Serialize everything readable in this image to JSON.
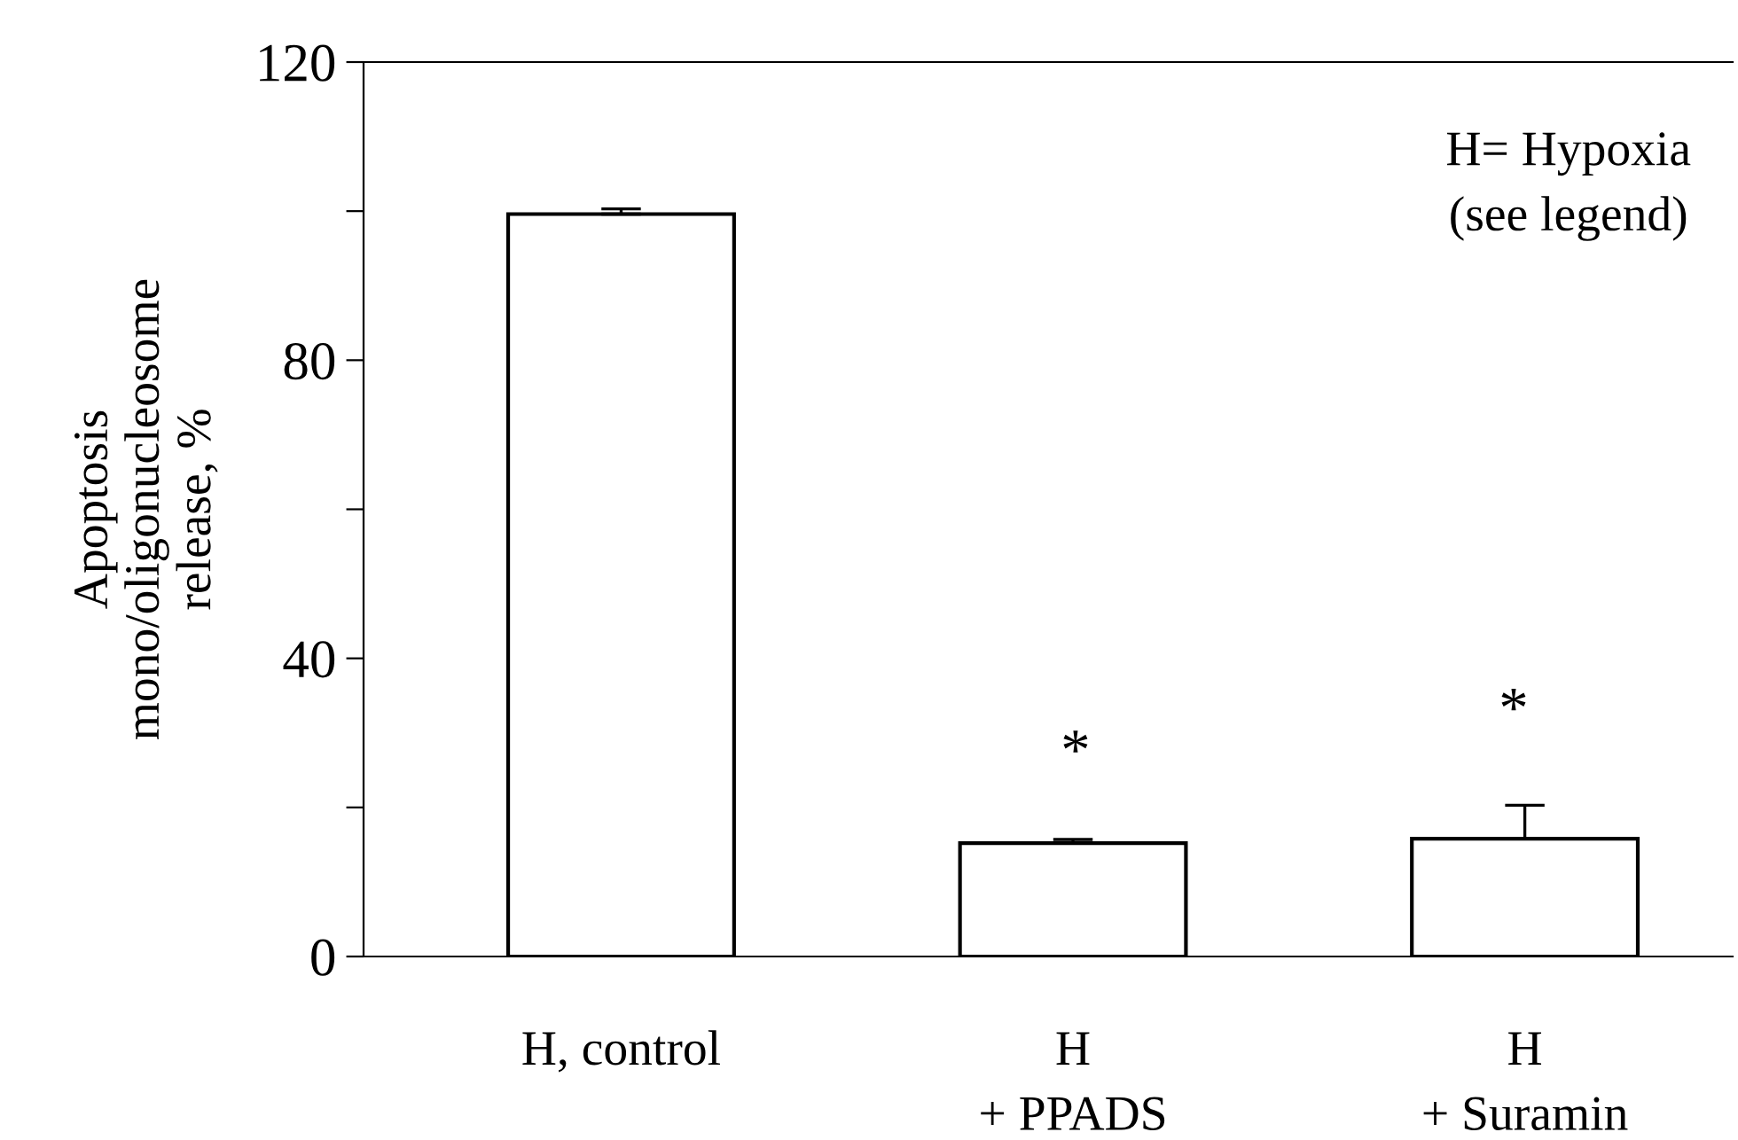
{
  "chart_data": {
    "type": "bar",
    "ylabel": "Apoptosis\nmono/oligonucleosome\nrelease, %",
    "categories": [
      "H, control",
      "H\n+ PPADS",
      "H\n+ Suramin"
    ],
    "values": [
      99.6,
      15.2,
      15.8
    ],
    "errors": [
      [
        99.6,
        100.3
      ],
      [
        15.2,
        15.7
      ],
      [
        15.8,
        20.3
      ]
    ],
    "color": "#ffffff",
    "ylim": [
      0,
      120
    ],
    "yticks": [
      0,
      {
        "value": 20,
        "label": null
      },
      40,
      {
        "value": 60,
        "label": null
      },
      80,
      {
        "value": 100,
        "label": null
      },
      120
    ],
    "annotations": [
      "*",
      "*",
      "H= Hypoxia\n(see legend)"
    ],
    "grid": false,
    "legend": false
  }
}
